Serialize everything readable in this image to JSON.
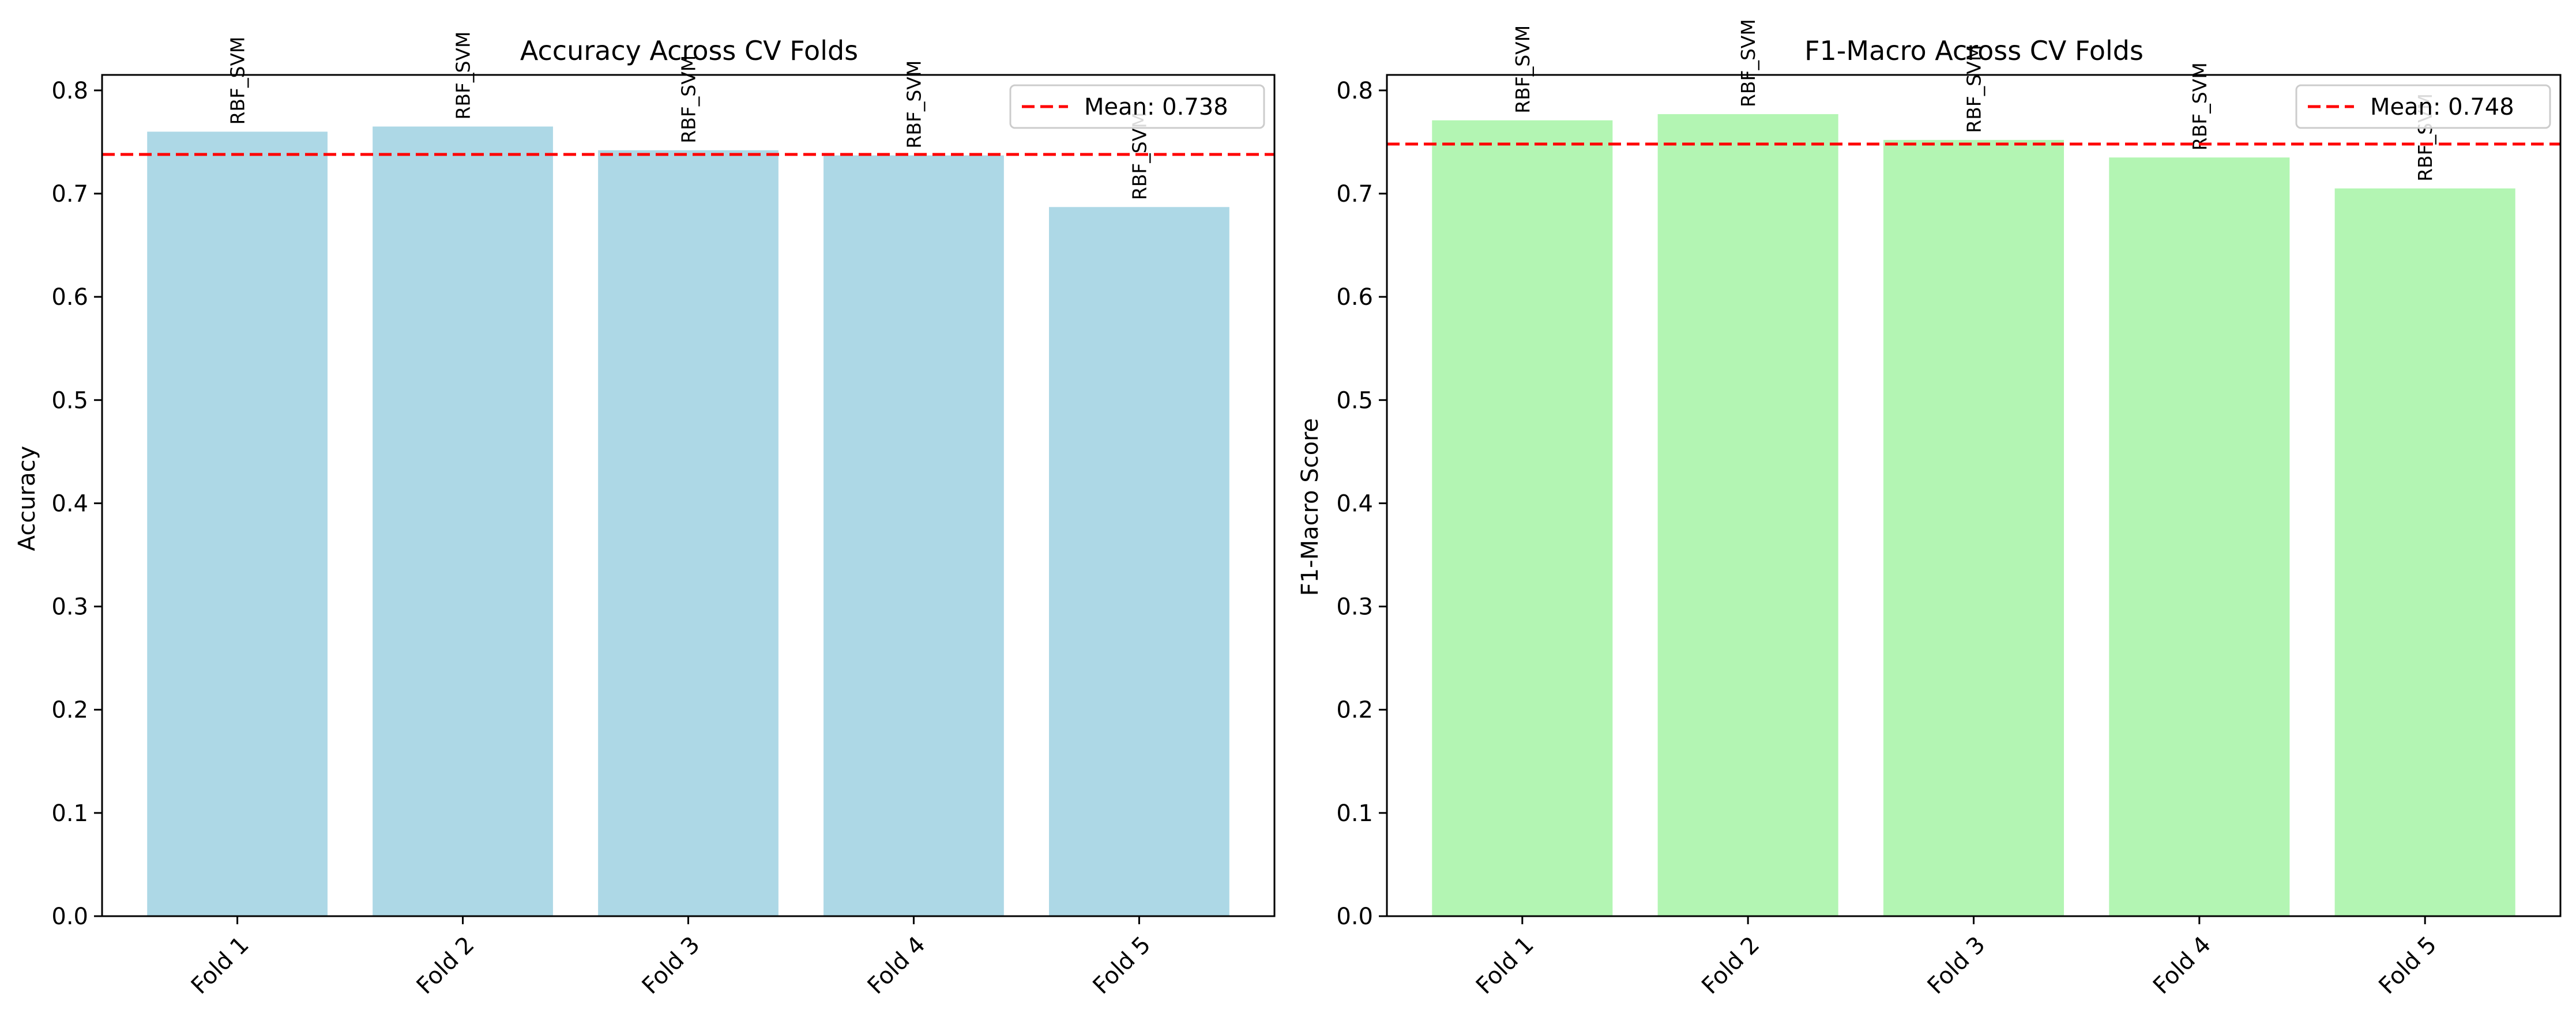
{
  "chart_data": [
    {
      "type": "bar",
      "title": "Accuracy Across CV Folds",
      "xlabel": "",
      "ylabel": "Accuracy",
      "categories": [
        "Fold 1",
        "Fold 2",
        "Fold 3",
        "Fold 4",
        "Fold 5"
      ],
      "values": [
        0.76,
        0.765,
        0.742,
        0.737,
        0.687
      ],
      "bar_labels": [
        "RBF_SVM",
        "RBF_SVM",
        "RBF_SVM",
        "RBF_SVM",
        "RBF_SVM"
      ],
      "bar_color": "#add8e6",
      "ylim": [
        0,
        0.815
      ],
      "yticks": [
        "0.0",
        "0.1",
        "0.2",
        "0.3",
        "0.4",
        "0.5",
        "0.6",
        "0.7",
        "0.8"
      ],
      "mean": 0.738,
      "mean_label": "Mean: 0.738",
      "mean_color": "#ff0000",
      "legend_position": "top-right",
      "grid": false
    },
    {
      "type": "bar",
      "title": "F1-Macro Across CV Folds",
      "xlabel": "",
      "ylabel": "F1-Macro Score",
      "categories": [
        "Fold 1",
        "Fold 2",
        "Fold 3",
        "Fold 4",
        "Fold 5"
      ],
      "values": [
        0.771,
        0.777,
        0.752,
        0.735,
        0.705
      ],
      "bar_labels": [
        "RBF_SVM",
        "RBF_SVM",
        "RBF_SVM",
        "RBF_SVM",
        "RBF_SVM"
      ],
      "bar_color": "#b3f5b3",
      "ylim": [
        0,
        0.815
      ],
      "yticks": [
        "0.0",
        "0.1",
        "0.2",
        "0.3",
        "0.4",
        "0.5",
        "0.6",
        "0.7",
        "0.8"
      ],
      "mean": 0.748,
      "mean_label": "Mean: 0.748",
      "mean_color": "#ff0000",
      "legend_position": "top-right",
      "grid": false
    }
  ]
}
